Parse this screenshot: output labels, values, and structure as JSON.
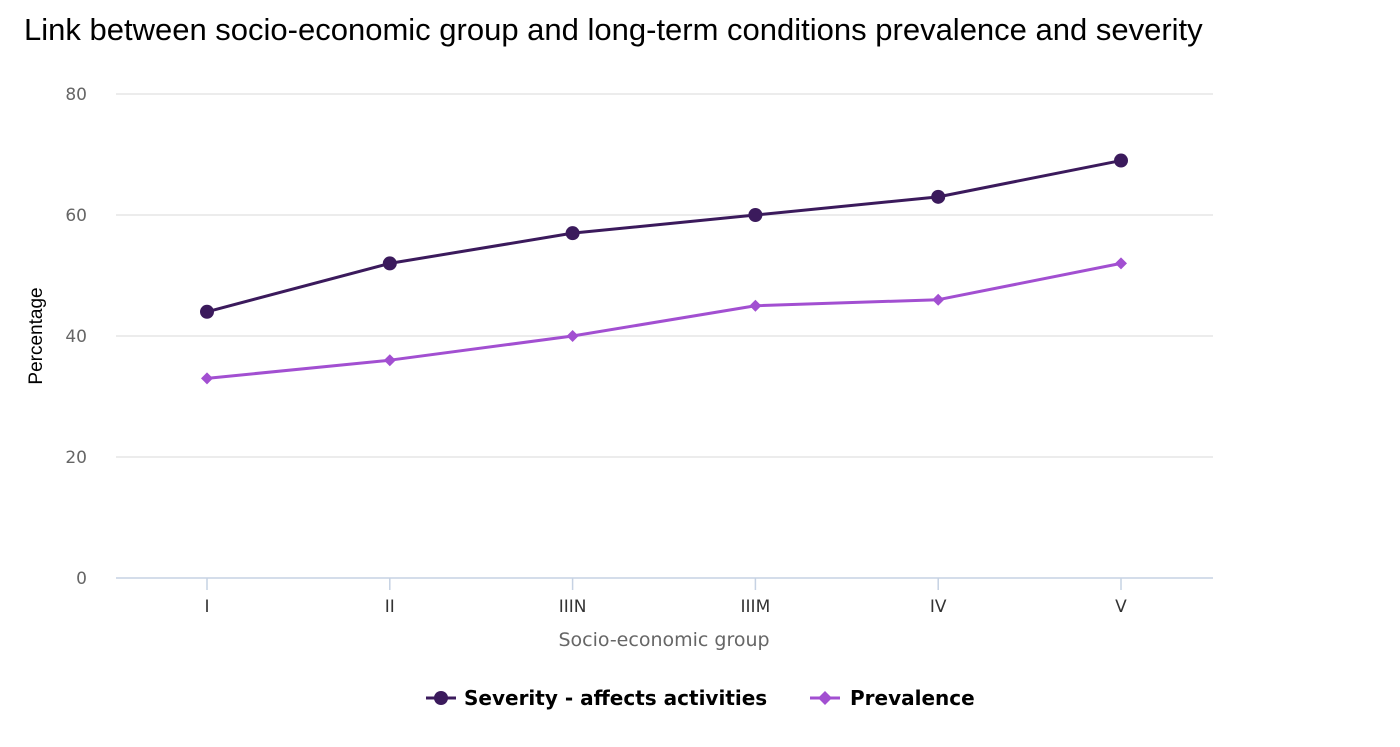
{
  "chart_data": {
    "type": "line",
    "title": "Link between socio-economic group and long-term conditions prevalence and severity",
    "xlabel": "Socio-economic group",
    "ylabel": "Percentage",
    "categories": [
      "I",
      "II",
      "IIIN",
      "IIIM",
      "IV",
      "V"
    ],
    "ylim": [
      0,
      80
    ],
    "yticks": [
      0,
      20,
      40,
      60,
      80
    ],
    "grid": true,
    "legend_position": "bottom-center",
    "series": [
      {
        "name": "Severity - affects activities",
        "values": [
          44,
          52,
          57,
          60,
          63,
          69
        ],
        "color": "#3b1a5c",
        "marker": "circle"
      },
      {
        "name": "Prevalence",
        "values": [
          33,
          36,
          40,
          45,
          46,
          52
        ],
        "color": "#a24fd1",
        "marker": "diamond"
      }
    ]
  }
}
